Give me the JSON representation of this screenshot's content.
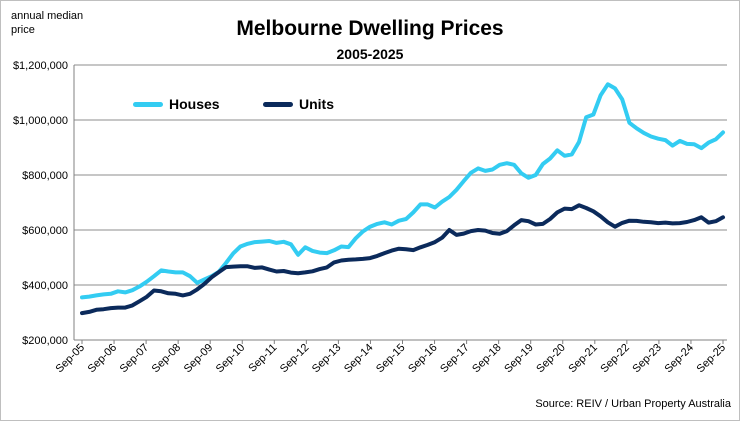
{
  "chart_data": {
    "type": "line",
    "title": "Melbourne Dwelling Prices",
    "subtitle": "2005-2025",
    "ylabel": "annual median price",
    "xlabel": "",
    "source": "Source: REIV / Urban Property Australia",
    "ylim": [
      200000,
      1200000
    ],
    "y_ticks": [
      "$200,000",
      "$400,000",
      "$600,000",
      "$800,000",
      "$1,000,000",
      "$1,200,000"
    ],
    "y_tick_values": [
      200000,
      400000,
      600000,
      800000,
      1000000,
      1200000
    ],
    "x_ticks": [
      "Sep-05",
      "Sep-06",
      "Sep-07",
      "Sep-08",
      "Sep-09",
      "Sep-10",
      "Sep-11",
      "Sep-12",
      "Sep-13",
      "Sep-14",
      "Sep-15",
      "Sep-16",
      "Sep-17",
      "Sep-18",
      "Sep-19",
      "Sep-20",
      "Sep-21",
      "Sep-22",
      "Sep-23",
      "Sep-24",
      "Sep-25"
    ],
    "grid": "horizontal",
    "legend_position": "top-left",
    "series": [
      {
        "name": "Houses",
        "color": "#33ccf2",
        "values": [
          355000,
          358000,
          362000,
          366000,
          368000,
          377000,
          373000,
          381000,
          395000,
          412000,
          432000,
          453000,
          449000,
          446000,
          446000,
          432000,
          408000,
          420000,
          432000,
          448000,
          480000,
          515000,
          540000,
          550000,
          556000,
          558000,
          560000,
          553000,
          557000,
          548000,
          510000,
          537000,
          524000,
          518000,
          516000,
          526000,
          540000,
          538000,
          570000,
          595000,
          612000,
          622000,
          628000,
          620000,
          634000,
          640000,
          664000,
          693000,
          693000,
          682000,
          703000,
          720000,
          746000,
          778000,
          808000,
          824000,
          815000,
          820000,
          837000,
          843000,
          837000,
          806000,
          790000,
          800000,
          840000,
          860000,
          890000,
          870000,
          875000,
          920000,
          1010000,
          1020000,
          1090000,
          1130000,
          1115000,
          1075000,
          990000,
          970000,
          953000,
          940000,
          932000,
          927000,
          907000,
          924000,
          913000,
          912000,
          898000,
          918000,
          930000,
          955000
        ]
      },
      {
        "name": "Units",
        "color": "#0b2a5b",
        "values": [
          298000,
          302000,
          310000,
          312000,
          316000,
          318000,
          318000,
          326000,
          341000,
          357000,
          380000,
          377000,
          370000,
          368000,
          362000,
          368000,
          384000,
          404000,
          428000,
          447000,
          465000,
          467000,
          468000,
          468000,
          462000,
          464000,
          456000,
          449000,
          451000,
          445000,
          443000,
          446000,
          450000,
          458000,
          464000,
          482000,
          489000,
          492000,
          493000,
          495000,
          498000,
          506000,
          516000,
          525000,
          532000,
          530000,
          527000,
          537000,
          546000,
          556000,
          572000,
          600000,
          582000,
          587000,
          596000,
          600000,
          598000,
          589000,
          586000,
          596000,
          617000,
          636000,
          632000,
          620000,
          622000,
          640000,
          664000,
          678000,
          676000,
          690000,
          680000,
          668000,
          650000,
          628000,
          612000,
          626000,
          634000,
          633000,
          630000,
          628000,
          625000,
          627000,
          624000,
          625000,
          629000,
          636000,
          646000,
          627000,
          632000,
          646000
        ]
      }
    ]
  }
}
